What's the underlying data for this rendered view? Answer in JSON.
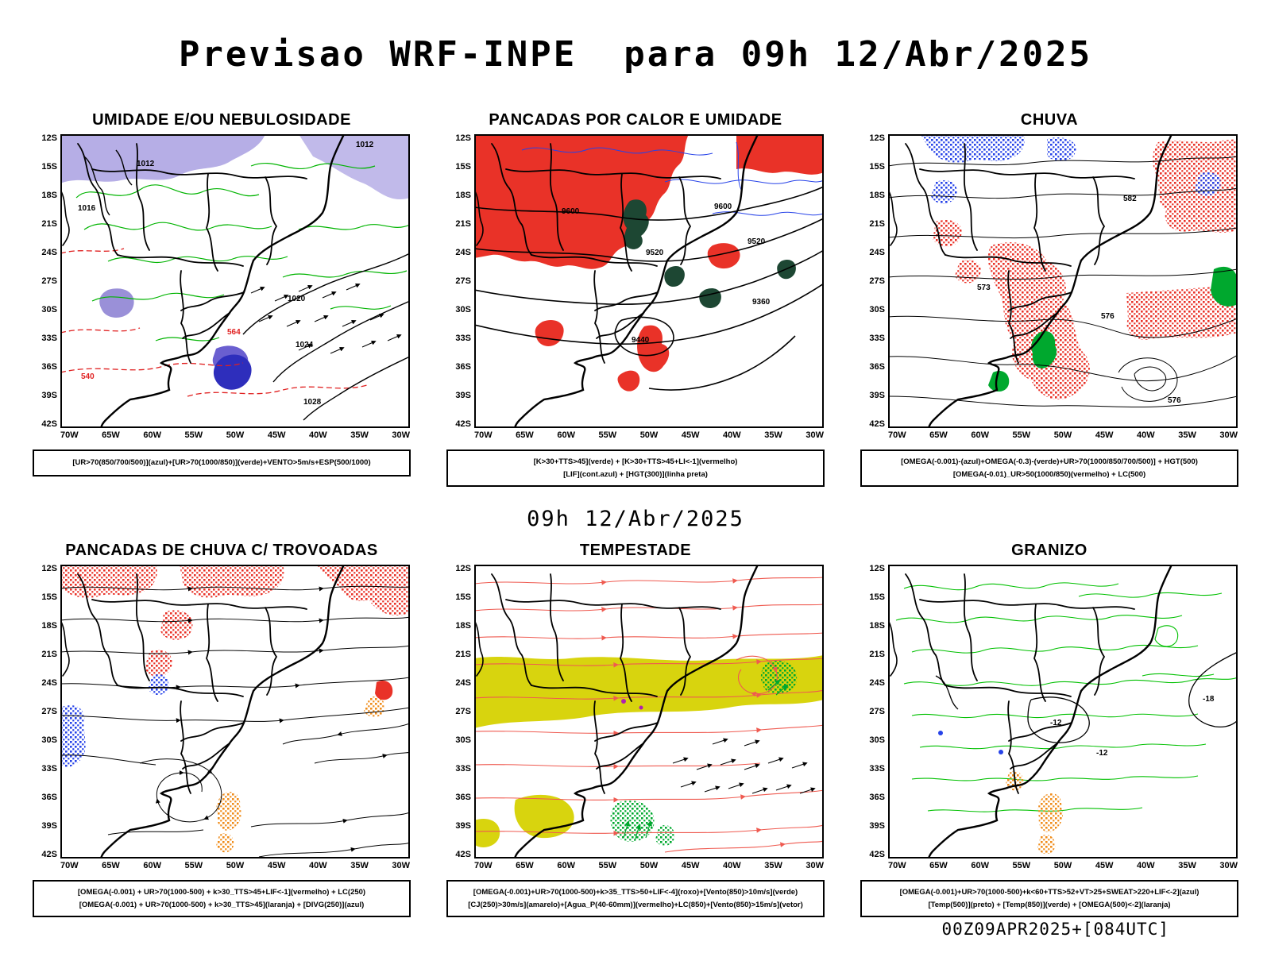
{
  "page": {
    "title": "Previsao WRF-INPE  para 09h 12/Abr/2025",
    "mid_label": "09h 12/Abr/2025",
    "footer": "00Z09APR2025+[084UTC]"
  },
  "axes": {
    "lat": [
      "12S",
      "15S",
      "18S",
      "21S",
      "24S",
      "27S",
      "30S",
      "33S",
      "36S",
      "39S",
      "42S"
    ],
    "lon": [
      "70W",
      "65W",
      "60W",
      "55W",
      "50W",
      "45W",
      "40W",
      "35W",
      "30W"
    ]
  },
  "panels": [
    {
      "id": "umidade",
      "title": "UMIDADE E/OU NEBULOSIDADE",
      "caption_lines": [
        "[UR>70(850/700/500)](azul)+[UR>70(1000/850)](verde)+VENTO>5m/s+ESP(500/1000)"
      ],
      "labels": {
        "l1": "1012",
        "l2": "1012",
        "l3": "1016",
        "l4": "1020",
        "l5": "1024",
        "l6": "1028",
        "l7": "540",
        "l8": "564"
      }
    },
    {
      "id": "pancadas-calor",
      "title": "PANCADAS POR CALOR E UMIDADE",
      "caption_lines": [
        "[K>30+TTS>45](verde) + [K>30+TTS>45+LI<-1](vermelho)",
        "[LIF](cont.azul) + [HGT(300)](linha preta)"
      ],
      "labels": {
        "l1": "9600",
        "l2": "9600",
        "l3": "9520",
        "l4": "9520",
        "l5": "9440",
        "l6": "9360"
      }
    },
    {
      "id": "chuva",
      "title": "CHUVA",
      "caption_lines": [
        "[OMEGA(-0.001)-(azul)+OMEGA(-0.3)-(verde)+UR>70(1000/850/700/500)] + HGT(500)",
        "[OMEGA(-0.01)_UR>50(1000/850)(vermelho) + LC(500)"
      ],
      "labels": {
        "l1": "582",
        "l2": "576",
        "l3": "573",
        "l4": "576"
      }
    },
    {
      "id": "trovoadas",
      "title": "PANCADAS DE CHUVA C/ TROVOADAS",
      "caption_lines": [
        "[OMEGA(-0.001) + UR>70(1000-500) + k>30_TTS>45+LIF<-1](vermelho) + LC(250)",
        "[OMEGA(-0.001) + UR>70(1000-500) + k>30_TTS>45](laranja) + [DIVG(250)](azul)"
      ],
      "labels": {}
    },
    {
      "id": "tempestade",
      "title": "TEMPESTADE",
      "caption_lines": [
        "[OMEGA(-0.001)+UR>70(1000-500)+k>35_TTS>50+LIF<-4](roxo)+[Vento(850)>10m/s](verde)",
        "[CJ(250)>30m/s](amarelo)+[Agua_P(40-60mm)](vermelho)+LC(850)+[Vento(850)>15m/s](vetor)"
      ],
      "labels": {}
    },
    {
      "id": "granizo",
      "title": "GRANIZO",
      "caption_lines": [
        "[OMEGA(-0.001)+UR>70(1000-500)+k<60+TTS>52+VT>25+SWEAT>220+LIF<-2](azul)",
        "[Temp(500)](preto) + [Temp(850)](verde) + [OMEGA(500)<-2](laranja)"
      ],
      "labels": {
        "l1": "-12",
        "l2": "-18",
        "l3": "-12"
      }
    }
  ],
  "colors": {
    "humidity_shade": "#b6aee6",
    "deep_moisture_blue": "#2e2ebc",
    "green_contour": "#00b400",
    "red_fill": "#e93228",
    "dark_green_fill": "#1d4733",
    "blue_contour": "#2642e8",
    "yellow_jet": "#d8d40e",
    "orange": "#ef8c1a",
    "salmon_streamline": "#ef5a50"
  }
}
